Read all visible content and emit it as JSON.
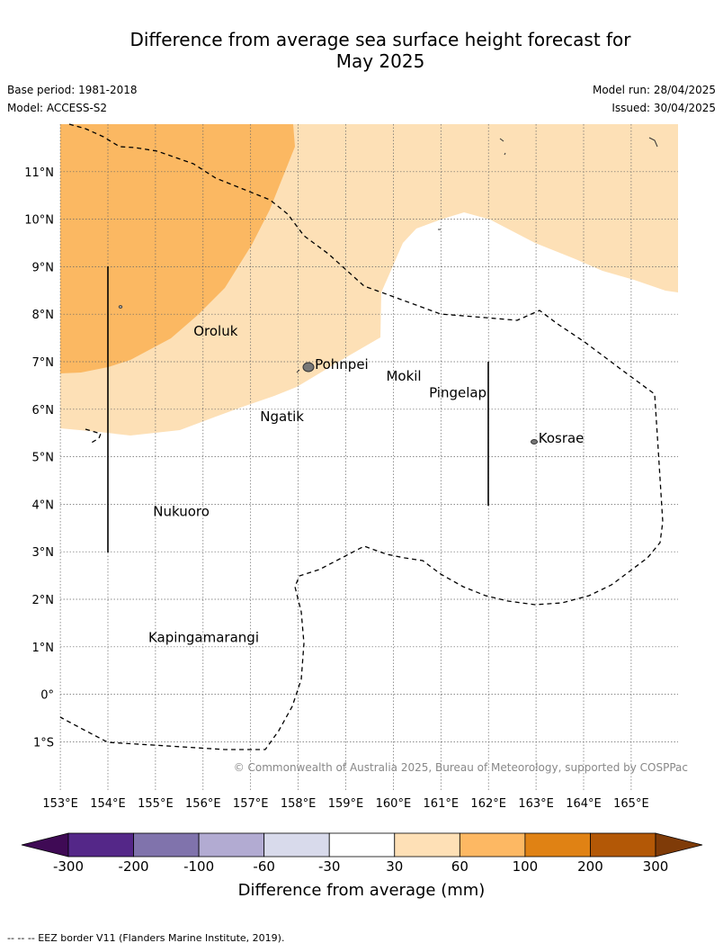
{
  "header": {
    "title_line1": "Difference from average sea surface height forecast for",
    "title_line2": "May 2025",
    "base_period": "Base period: 1981-2018",
    "model": "Model: ACCESS-S2",
    "model_run": "Model run: 28/04/2025",
    "issued": "Issued: 30/04/2025"
  },
  "map": {
    "lat_labels": [
      "11°N",
      "10°N",
      "9°N",
      "8°N",
      "7°N",
      "6°N",
      "5°N",
      "4°N",
      "3°N",
      "2°N",
      "1°N",
      "0°",
      "1°S"
    ],
    "lon_labels": [
      "153°E",
      "154°E",
      "155°E",
      "156°E",
      "157°E",
      "158°E",
      "159°E",
      "160°E",
      "161°E",
      "162°E",
      "163°E",
      "164°E",
      "165°E"
    ],
    "places": [
      {
        "name": "Oroluk",
        "lon": 155.8,
        "lat": 7.55
      },
      {
        "name": "Pohnpei",
        "lon": 158.35,
        "lat": 6.85
      },
      {
        "name": "Mokil",
        "lon": 159.85,
        "lat": 6.6
      },
      {
        "name": "Pingelap",
        "lon": 160.75,
        "lat": 6.25
      },
      {
        "name": "Ngatik",
        "lon": 157.2,
        "lat": 5.75
      },
      {
        "name": "Kosrae",
        "lon": 163.05,
        "lat": 5.3
      },
      {
        "name": "Nukuoro",
        "lon": 154.95,
        "lat": 3.75
      },
      {
        "name": "Kapingamarangi",
        "lon": 154.85,
        "lat": 1.1
      }
    ],
    "copyright": "© Commonwealth of Australia 2025, Bureau of Meteorology, supported by COSPPac",
    "colors": {
      "level_30_60": "#fde0b6",
      "level_60_100": "#fbb862",
      "eez": "#000000",
      "grid": "#666666"
    }
  },
  "colorbar": {
    "title": "Difference from average (mm)",
    "ticks": [
      "-300",
      "-200",
      "-100",
      "-60",
      "-30",
      "30",
      "60",
      "100",
      "200",
      "300"
    ],
    "colors": [
      "#3f0a55",
      "#542788",
      "#8073ac",
      "#b2abd2",
      "#d8daeb",
      "#ffffff",
      "#fee0b6",
      "#fdb863",
      "#e08214",
      "#b35806",
      "#7f3b08"
    ]
  },
  "footer": {
    "legend": "--  --  -- EEZ border V11 (Flanders Marine Institute, 2019)."
  }
}
